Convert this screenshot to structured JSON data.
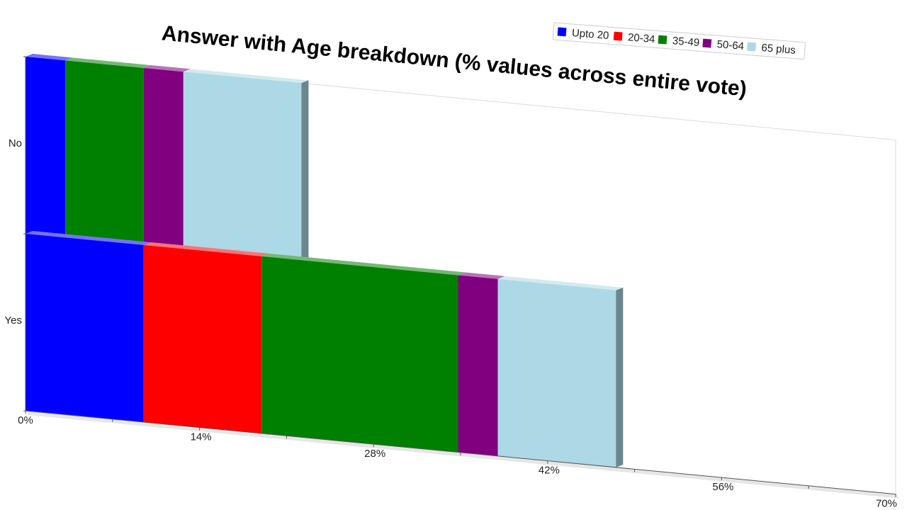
{
  "chart_data": {
    "type": "bar",
    "orientation": "horizontal",
    "stacked": true,
    "title": "Answer with Age breakdown (% values across entire vote)",
    "xlabel": "",
    "ylabel": "",
    "categories": [
      "No",
      "Yes"
    ],
    "x_ticks": [
      "0%",
      "14%",
      "28%",
      "42%",
      "56%",
      "70%"
    ],
    "xlim": [
      0,
      70
    ],
    "legend_position": "top-right",
    "grid": false,
    "series": [
      {
        "name": "Upto 20",
        "color": "#0000ff",
        "values": [
          3.2,
          9.5
        ]
      },
      {
        "name": "20-34",
        "color": "#ff0000",
        "values": [
          0,
          9.5
        ]
      },
      {
        "name": "35-49",
        "color": "#008000",
        "values": [
          6.3,
          15.8
        ]
      },
      {
        "name": "50-64",
        "color": "#800080",
        "values": [
          3.2,
          3.2
        ]
      },
      {
        "name": "65 plus",
        "color": "#add8e6",
        "values": [
          9.5,
          9.5
        ]
      }
    ]
  }
}
